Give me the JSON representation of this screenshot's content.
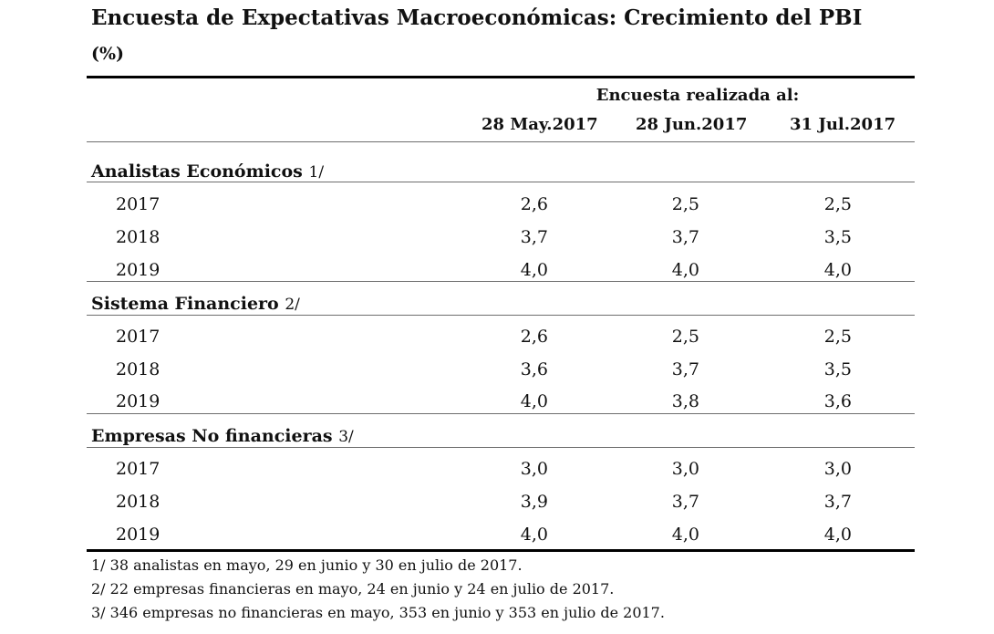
{
  "title": "Encuesta de Expectativas Macroeconómicas: Crecimiento del PBI",
  "unit": "(%)",
  "header_group": "Encuesta realizada al:",
  "columns": [
    "28 May.2017",
    "28 Jun.2017",
    "31 Jul.2017"
  ],
  "sections": [
    {
      "label": "Analistas Económicos",
      "note": "1/",
      "rows": [
        {
          "year": "2017",
          "values": [
            "2,6",
            "2,5",
            "2,5"
          ]
        },
        {
          "year": "2018",
          "values": [
            "3,7",
            "3,7",
            "3,5"
          ]
        },
        {
          "year": "2019",
          "values": [
            "4,0",
            "4,0",
            "4,0"
          ]
        }
      ]
    },
    {
      "label": "Sistema Financiero",
      "note": "2/",
      "rows": [
        {
          "year": "2017",
          "values": [
            "2,6",
            "2,5",
            "2,5"
          ]
        },
        {
          "year": "2018",
          "values": [
            "3,6",
            "3,7",
            "3,5"
          ]
        },
        {
          "year": "2019",
          "values": [
            "4,0",
            "3,8",
            "3,6"
          ]
        }
      ]
    },
    {
      "label": "Empresas No financieras",
      "note": "3/",
      "rows": [
        {
          "year": "2017",
          "values": [
            "3,0",
            "3,0",
            "3,0"
          ]
        },
        {
          "year": "2018",
          "values": [
            "3,9",
            "3,7",
            "3,7"
          ]
        },
        {
          "year": "2019",
          "values": [
            "4,0",
            "4,0",
            "4,0"
          ]
        }
      ]
    }
  ],
  "footnotes": [
    "1/ 38 analistas en mayo, 29 en junio y 30 en julio de 2017.",
    "2/ 22 empresas financieras en mayo, 24 en junio y 24 en julio de 2017.",
    "3/ 346 empresas no financieras en mayo, 353 en junio y 353 en julio de 2017."
  ]
}
